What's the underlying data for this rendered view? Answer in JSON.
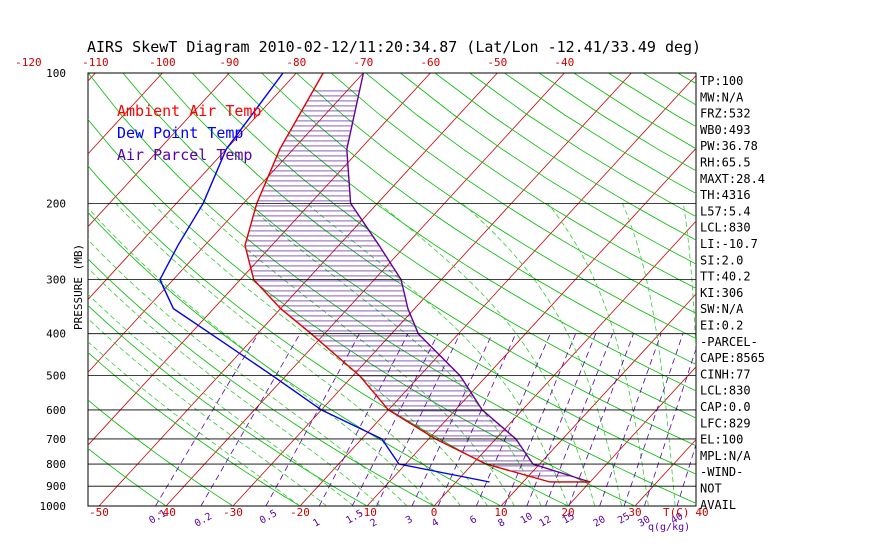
{
  "chart_data": {
    "type": "line",
    "title": "AIRS SkewT Diagram 2010-02-12/11:20:34.87 (Lat/Lon -12.41/33.49 deg)",
    "ylabel": "PRESSURE (MB)",
    "xlabel_right": "T(C)",
    "mixing_unit_label": "q(g/kg)",
    "pressure_ticks": [
      "100",
      "200",
      "300",
      "400",
      "500",
      "600",
      "700",
      "800",
      "900",
      "1000"
    ],
    "pressure_levels": [
      100,
      200,
      300,
      400,
      500,
      600,
      700,
      800,
      900,
      1000
    ],
    "top_temp_ticks": [
      "-120",
      "-110",
      "-100",
      "-90",
      "-80",
      "-70",
      "-60",
      "-50",
      "-40"
    ],
    "bottom_temp_ticks": [
      "-50",
      "-40",
      "-30",
      "-20",
      "-10",
      "0",
      "10",
      "20",
      "30",
      "40"
    ],
    "mixing_ratio_ticks": [
      "0.1",
      "0.2",
      "0.5",
      "1",
      "1.5",
      "2",
      "3",
      "4",
      "6",
      "8",
      "10",
      "12",
      "15",
      "20",
      "25",
      "30",
      "40"
    ],
    "legend": [
      {
        "label": "Ambient Air Temp",
        "color": "#ff0000"
      },
      {
        "label": "Dew Point Temp",
        "color": "#0000ff"
      },
      {
        "label": "Air Parcel Temp",
        "color": "#6600cc"
      }
    ],
    "series": [
      {
        "name": "Ambient Air Temp",
        "color": "#e00000",
        "points": [
          [
            -76,
            100
          ],
          [
            -72,
            150
          ],
          [
            -68,
            200
          ],
          [
            -64,
            250
          ],
          [
            -58,
            300
          ],
          [
            -50,
            350
          ],
          [
            -42,
            400
          ],
          [
            -29,
            500
          ],
          [
            -20,
            600
          ],
          [
            -9,
            700
          ],
          [
            2,
            800
          ],
          [
            14,
            880
          ]
        ]
      },
      {
        "name": "Dew Point Temp",
        "color": "#0000ee",
        "points": [
          [
            -82,
            100
          ],
          [
            -80,
            150
          ],
          [
            -76,
            200
          ],
          [
            -74,
            250
          ],
          [
            -72,
            300
          ],
          [
            -66,
            350
          ],
          [
            -57,
            400
          ],
          [
            -42,
            500
          ],
          [
            -30,
            600
          ],
          [
            -17,
            700
          ],
          [
            -11,
            800
          ],
          [
            5,
            880
          ]
        ]
      },
      {
        "name": "Air Parcel Temp",
        "color": "#660099",
        "points": [
          [
            -70,
            100
          ],
          [
            -62,
            150
          ],
          [
            -54,
            200
          ],
          [
            -44,
            250
          ],
          [
            -36,
            300
          ],
          [
            -31,
            350
          ],
          [
            -26,
            400
          ],
          [
            -14,
            500
          ],
          [
            -6,
            600
          ],
          [
            3,
            700
          ],
          [
            9,
            800
          ],
          [
            20,
            880
          ]
        ]
      }
    ],
    "indices": [
      "TP:100",
      "MW:N/A",
      "FRZ:532",
      "WB0:493",
      "PW:36.78",
      "RH:65.5",
      "MAXT:28.4",
      "TH:4316",
      "L57:5.4",
      "LCL:830",
      "LI:-10.7",
      "SI:2.0",
      "TT:40.2",
      "KI:306",
      "SW:N/A",
      "EI:0.2",
      "-PARCEL-",
      "CAPE:8565",
      "CINH:77",
      "LCL:830",
      "CAP:0.0",
      "LFC:829",
      "EL:100",
      "MPL:N/A",
      "-WIND-",
      "NOT",
      "AVAIL"
    ]
  },
  "colors": {
    "isotherm": "#cc0000",
    "dry_adiabat": "#00bb00",
    "moist_adiabat": "#33cc33",
    "mixing_ratio": "#5500aa",
    "isobar": "#000000",
    "hatch": "#440088"
  }
}
